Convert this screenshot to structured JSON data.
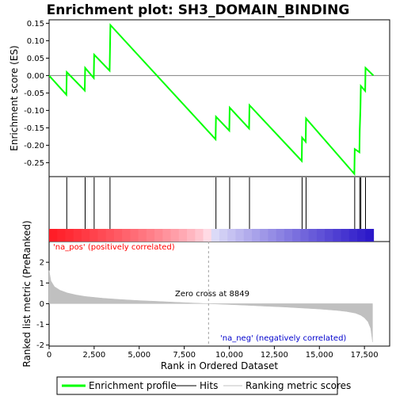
{
  "chart_data": {
    "type": "line",
    "title": "Enrichment plot: SH3_DOMAIN_BINDING",
    "top_panel": {
      "ylabel": "Enrichment score (ES)",
      "ylim": [
        -0.29,
        0.16
      ],
      "yticks": [
        -0.25,
        -0.2,
        -0.15,
        -0.1,
        -0.05,
        0.0,
        0.05,
        0.1,
        0.15
      ],
      "ytick_labels": [
        "-0.25",
        "-0.20",
        "-0.15",
        "-0.10",
        "-0.05",
        "0.00",
        "0.05",
        "0.10",
        "0.15"
      ],
      "grid": false,
      "series": [
        {
          "name": "Enrichment profile",
          "color": "#00ff00",
          "x": [
            0,
            960,
            980,
            1980,
            2000,
            2480,
            2500,
            3360,
            3380,
            3400,
            9240,
            9260,
            10000,
            10020,
            11100,
            11120,
            14020,
            14040,
            14240,
            14260,
            16940,
            16960,
            17220,
            17240,
            17280,
            17300,
            17540,
            17560,
            18000
          ],
          "y": [
            0.0,
            -0.055,
            0.01,
            -0.043,
            0.022,
            -0.007,
            0.06,
            0.014,
            0.078,
            0.145,
            -0.183,
            -0.118,
            -0.158,
            -0.092,
            -0.152,
            -0.085,
            -0.245,
            -0.178,
            -0.19,
            -0.123,
            -0.282,
            -0.211,
            -0.22,
            -0.157,
            -0.094,
            -0.03,
            -0.044,
            0.022,
            0.0
          ]
        }
      ]
    },
    "hits": {
      "name": "Hits",
      "positions": [
        980,
        2000,
        2500,
        3380,
        9260,
        10020,
        11120,
        14040,
        14260,
        16960,
        17240,
        17300,
        17560
      ]
    },
    "bottom_panel": {
      "ylabel": "Ranked list metric (PreRanked)",
      "xlabel": "Rank in Ordered Dataset",
      "ylim": [
        -2,
        3
      ],
      "yticks": [
        -2,
        -1,
        0,
        1,
        2
      ],
      "ytick_labels": [
        "-2",
        "-1",
        "0",
        "1",
        "2"
      ],
      "xlim": [
        0,
        18900
      ],
      "xticks": [
        0,
        2500,
        5000,
        7500,
        10000,
        12500,
        15000,
        17500
      ],
      "xtick_labels": [
        "0",
        "2,500",
        "5,000",
        "7,500",
        "10,000",
        "12,500",
        "15,000",
        "17,500"
      ],
      "series": [
        {
          "name": "Ranking metric scores",
          "color": "#c0c0c0",
          "x": [
            0,
            100,
            300,
            600,
            1000,
            1500,
            2000,
            3000,
            4000,
            5000,
            6000,
            7000,
            8000,
            8849,
            10000,
            11000,
            12000,
            13000,
            14000,
            15000,
            16000,
            16500,
            17000,
            17300,
            17500,
            17700,
            17850,
            17950
          ],
          "y": [
            1.6,
            1.1,
            0.82,
            0.65,
            0.52,
            0.42,
            0.35,
            0.26,
            0.2,
            0.15,
            0.11,
            0.07,
            0.03,
            0.0,
            -0.04,
            -0.08,
            -0.12,
            -0.16,
            -0.21,
            -0.26,
            -0.33,
            -0.38,
            -0.46,
            -0.56,
            -0.68,
            -0.88,
            -1.2,
            -1.85
          ]
        }
      ],
      "zero_cross_rank": 8849,
      "annotations": {
        "pos": "'na_pos' (positively correlated)",
        "neg": "'na_neg' (negatively correlated)",
        "zero": "Zero cross at 8849"
      }
    },
    "x_max_rank": 18000,
    "colors": {
      "pos_label": "#ff0000",
      "neg_label": "#0000cc",
      "hits": "#000000"
    },
    "legend": {
      "placement": "bottom",
      "items": [
        {
          "label": "Enrichment profile",
          "color": "#00ff00"
        },
        {
          "label": "Hits",
          "color": "#000000"
        },
        {
          "label": "Ranking metric scores",
          "color": "#c0c0c0"
        }
      ]
    }
  }
}
